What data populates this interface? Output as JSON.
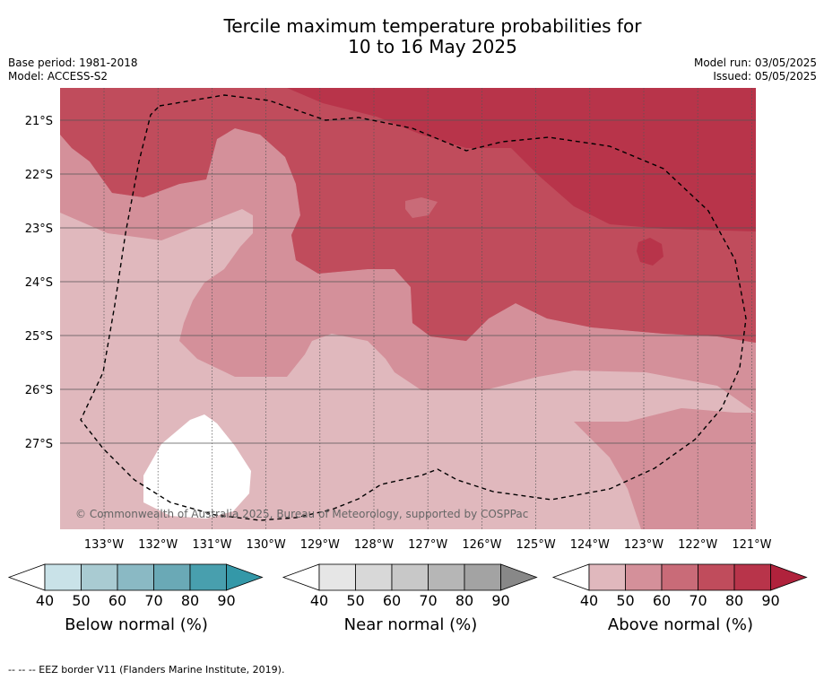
{
  "header": {
    "title_line1": "Tercile maximum temperature probabilities for",
    "title_line2": "10 to 16 May 2025",
    "base_period": "Base period: 1981-2018",
    "model": "Model: ACCESS-S2",
    "model_run": "Model run: 03/05/2025",
    "issued": "Issued: 05/05/2025"
  },
  "map": {
    "lat_labels": [
      "21°S",
      "22°S",
      "23°S",
      "24°S",
      "25°S",
      "26°S",
      "27°S"
    ],
    "lon_labels": [
      "133°W",
      "132°W",
      "131°W",
      "130°W",
      "129°W",
      "128°W",
      "127°W",
      "126°W",
      "125°W",
      "124°W",
      "123°W",
      "122°W",
      "121°W"
    ],
    "copyright": "© Commonwealth of Australia 2025, Bureau of Meteorology, supported by COSPPac",
    "colors": {
      "above_40": "#e0b8bd",
      "above_50": "#d4909a",
      "above_60": "#c96b78",
      "above_70": "#c04c5c",
      "above_80": "#b8344a",
      "below_40_60": "#ffffff",
      "eez_line": "#000000"
    }
  },
  "legends": [
    {
      "label": "Below normal (%)",
      "ticks": [
        "40",
        "50",
        "60",
        "70",
        "80",
        "90"
      ],
      "colors": [
        "#ffffff",
        "#c9e2e8",
        "#a9cbd2",
        "#8ab9c4",
        "#6aa9b6",
        "#489fae",
        "#3498a8"
      ]
    },
    {
      "label": "Near normal (%)",
      "ticks": [
        "40",
        "50",
        "60",
        "70",
        "80",
        "90"
      ],
      "colors": [
        "#ffffff",
        "#e6e6e6",
        "#d8d8d8",
        "#c8c8c8",
        "#b6b6b6",
        "#a3a3a3",
        "#888888"
      ]
    },
    {
      "label": "Above normal (%)",
      "ticks": [
        "40",
        "50",
        "60",
        "70",
        "80",
        "90"
      ],
      "colors": [
        "#ffffff",
        "#e0b8bd",
        "#d4909a",
        "#c96b78",
        "#c04c5c",
        "#b8344a",
        "#b0223c"
      ]
    }
  ],
  "footnote": "--  --  -- EEZ border V11 (Flanders Marine Institute, 2019)."
}
